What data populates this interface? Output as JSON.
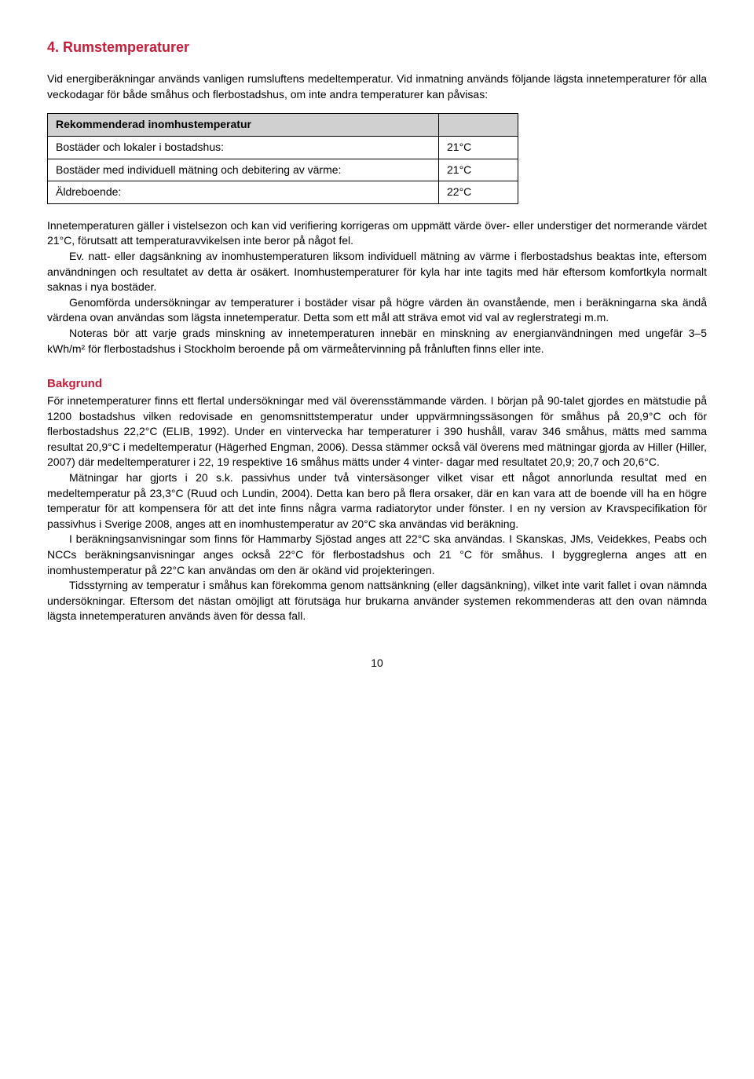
{
  "title": "4. Rumstemperaturer",
  "intro": "Vid energiberäkningar används vanligen rumsluftens medeltemperatur. Vid inmatning används följande lägsta innetemperaturer för alla veckodagar för både småhus och flerbostadshus, om inte andra temperaturer kan påvisas:",
  "table": {
    "header": "Rekommenderad inomhustemperatur",
    "rows": [
      {
        "label": "Bostäder och lokaler i bostadshus:",
        "value": "21°C"
      },
      {
        "label": "Bostäder med individuell mätning och debitering av värme:",
        "value": "21°C"
      },
      {
        "label": "Äldreboende:",
        "value": "22°C"
      }
    ]
  },
  "body": {
    "p1": "Innetemperaturen gäller i vistelsezon och kan vid verifiering korrigeras om uppmätt värde över- eller understiger det normerande värdet 21°C, förutsatt att temperaturavvikelsen inte beror på något fel.",
    "p2": "Ev. natt- eller dagsänkning av inomhustemperaturen liksom individuell mätning av värme i flerbostadshus beaktas inte, eftersom användningen och resultatet av detta är osäkert. Inomhustemperaturer för kyla har inte tagits med här eftersom komfortkyla normalt saknas i nya bostäder.",
    "p3": "Genomförda undersökningar av temperaturer i bostäder visar på högre värden än ovanstående, men i beräkningarna ska ändå värdena ovan användas som lägsta innetemperatur. Detta som ett mål att sträva emot vid val av reglerstrategi m.m.",
    "p4": "Noteras bör att varje grads minskning av innetemperaturen innebär en minskning av energianvändningen med ungefär 3–5 kWh/m² för flerbostadshus i Stockholm beroende på om värmeåtervinning på frånluften finns eller inte."
  },
  "bakgrund": {
    "heading": "Bakgrund",
    "p1": "För innetemperaturer finns ett flertal undersökningar med väl överensstämmande värden. I början på 90-talet gjordes en mätstudie på 1200 bostadshus vilken redovisade en genomsnittstemperatur under uppvärmningssäsongen för småhus på 20,9°C och för flerbostadshus 22,2°C (ELIB, 1992). Under en vintervecka har temperaturer i 390 hushåll, varav 346 småhus, mätts med samma resultat 20,9°C i medeltemperatur (Hägerhed Engman, 2006). Dessa stämmer också väl överens med mätningar gjorda av Hiller (Hiller, 2007) där medeltemperaturer i 22, 19 respektive 16 småhus mätts under 4 vinter- dagar med resultatet 20,9; 20,7 och 20,6°C.",
    "p2": "Mätningar har gjorts i 20 s.k. passivhus under två vintersäsonger vilket visar ett något annorlunda resultat med en medeltemperatur på 23,3°C (Ruud och Lundin, 2004). Detta kan bero på flera orsaker, där en kan vara att de boende vill ha en högre temperatur för att kompensera för att det inte finns några varma radiatorytor under fönster. I en ny version av Kravspecifikation för passivhus i Sverige 2008, anges att en inomhustemperatur av 20°C ska användas vid beräkning.",
    "p3": "I beräkningsanvisningar som finns för Hammarby Sjöstad anges att 22°C ska användas. I Skanskas, JMs, Veidekkes, Peabs och NCCs beräkningsanvisningar anges också 22°C för flerbostadshus och 21 °C för småhus. I byggreglerna anges att en inomhustemperatur på 22°C kan användas om den är okänd vid projekteringen.",
    "p4": "Tidsstyrning av temperatur i småhus kan förekomma genom nattsänkning (eller dagsänkning), vilket inte varit fallet i ovan nämnda undersökningar. Eftersom det nästan omöjligt att förutsäga hur brukarna använder systemen rekommenderas att den ovan nämnda lägsta innetemperaturen används även för dessa fall."
  },
  "page_number": "10",
  "colors": {
    "heading": "#c41e3a",
    "table_header_bg": "#d0d0d0",
    "border": "#000000",
    "text": "#000000",
    "background": "#ffffff"
  }
}
